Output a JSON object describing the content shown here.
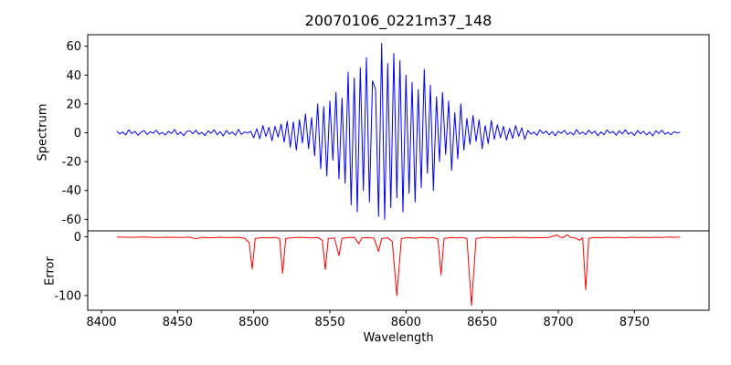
{
  "title": "20070106_0221m37_148",
  "x_axis": {
    "label": "Wavelength",
    "xlim": [
      8391,
      8799
    ],
    "ticks": [
      8400,
      8450,
      8500,
      8550,
      8600,
      8650,
      8700,
      8750
    ]
  },
  "chart_data": [
    {
      "type": "line",
      "title": "20070106_0221m37_148",
      "ylabel": "Spectrum",
      "color": "#0000ff",
      "ylim": [
        -68,
        68
      ],
      "yticks": [
        60,
        40,
        20,
        0,
        -20,
        -40,
        -60
      ],
      "x_start": 8410,
      "x_step": 2,
      "values": [
        1.2,
        -0.8,
        0.5,
        -1.5,
        2.0,
        -0.6,
        1.0,
        -1.8,
        0.4,
        1.5,
        -1.2,
        0.7,
        -0.3,
        1.8,
        -1.0,
        0.2,
        -1.6,
        1.1,
        -0.5,
        2.2,
        -1.3,
        0.6,
        -2.0,
        0.9,
        1.4,
        -0.7,
        1.7,
        -1.1,
        0.3,
        -1.9,
        1.3,
        -0.4,
        2.1,
        -1.4,
        0.8,
        -2.2,
        1.6,
        -0.9,
        0.5,
        -1.7,
        2.3,
        -1.2,
        0.6,
        -0.2,
        1.0,
        -3.5,
        2.8,
        -4.2,
        5.0,
        -2.5,
        3.8,
        -5.5,
        4.5,
        -3.0,
        6.0,
        -6.5,
        8.0,
        -10.0,
        7.5,
        -12.0,
        9.0,
        -7.0,
        13.0,
        -11.0,
        10.5,
        -16.0,
        20.0,
        -25.0,
        18.0,
        -30.0,
        22.0,
        -19.0,
        28.0,
        -32.0,
        24.0,
        -35.0,
        42.0,
        -50.0,
        38.0,
        -55.0,
        45.0,
        -40.0,
        52.0,
        -48.0,
        36.0,
        30.0,
        -58.0,
        62.0,
        -60.0,
        48.0,
        -52.0,
        55.0,
        -45.0,
        50.0,
        -55.0,
        40.0,
        -42.0,
        35.0,
        -48.0,
        30.0,
        -38.0,
        44.0,
        -28.0,
        33.0,
        -40.0,
        25.0,
        -20.0,
        28.0,
        -15.0,
        22.0,
        -26.0,
        14.0,
        -18.0,
        20.0,
        -12.0,
        10.0,
        -8.0,
        12.0,
        -6.0,
        9.0,
        -11.0,
        5.0,
        -7.5,
        8.5,
        -4.5,
        5.5,
        -3.5,
        4.5,
        -5.0,
        3.0,
        -4.0,
        5.0,
        -2.5,
        3.5,
        -4.5,
        1.5,
        -1.0,
        0.6,
        -1.8,
        2.0,
        -0.5,
        1.2,
        -1.5,
        0.8,
        -2.0,
        1.0,
        -0.4,
        1.7,
        -1.2,
        0.3,
        -1.6,
        2.2,
        -0.9,
        0.5,
        -1.3,
        1.8,
        -0.6,
        1.1,
        -2.1,
        0.7,
        -1.4,
        1.9,
        -0.3,
        0.9,
        -1.7,
        1.3,
        -0.8,
        2.0,
        -1.1,
        0.4,
        -1.9,
        1.5,
        -0.7,
        1.0,
        -1.5,
        0.6,
        -2.2,
        1.4,
        -0.5,
        1.8,
        -1.0,
        0.3,
        -1.3,
        0.8,
        -0.2,
        0.5
      ]
    },
    {
      "type": "line",
      "ylabel": "Error",
      "xlabel": "Wavelength",
      "color": "#ff0000",
      "ylim": [
        -125,
        10
      ],
      "yticks": [
        0,
        -100
      ],
      "points": [
        [
          8410,
          -0.5
        ],
        [
          8420,
          -1
        ],
        [
          8428,
          -0.6
        ],
        [
          8436,
          -1.2
        ],
        [
          8444,
          -0.8
        ],
        [
          8452,
          -1.4
        ],
        [
          8458,
          -0.7
        ],
        [
          8462,
          -3.5
        ],
        [
          8466,
          -1
        ],
        [
          8472,
          -1.8
        ],
        [
          8478,
          -0.8
        ],
        [
          8484,
          -1.5
        ],
        [
          8490,
          -1
        ],
        [
          8494,
          -2.5
        ],
        [
          8497,
          -10
        ],
        [
          8499,
          -55
        ],
        [
          8501,
          -3
        ],
        [
          8506,
          -1.2
        ],
        [
          8510,
          -2
        ],
        [
          8514,
          -1
        ],
        [
          8517,
          -3
        ],
        [
          8519,
          -62
        ],
        [
          8521,
          -3
        ],
        [
          8526,
          -1.5
        ],
        [
          8532,
          -1
        ],
        [
          8538,
          -2
        ],
        [
          8542,
          -1.2
        ],
        [
          8545,
          -6
        ],
        [
          8547,
          -56
        ],
        [
          8549,
          -3
        ],
        [
          8553,
          -2
        ],
        [
          8556,
          -32
        ],
        [
          8558,
          -2.5
        ],
        [
          8562,
          -1.5
        ],
        [
          8566,
          -1
        ],
        [
          8569,
          -12
        ],
        [
          8571,
          -2
        ],
        [
          8575,
          -1.5
        ],
        [
          8579,
          -2.5
        ],
        [
          8582,
          -25
        ],
        [
          8584,
          -3
        ],
        [
          8588,
          -2
        ],
        [
          8591,
          -8
        ],
        [
          8594,
          -100
        ],
        [
          8597,
          -3
        ],
        [
          8601,
          -1.5
        ],
        [
          8606,
          -2.5
        ],
        [
          8610,
          -1.2
        ],
        [
          8614,
          -2
        ],
        [
          8618,
          -1.5
        ],
        [
          8621,
          -4
        ],
        [
          8623,
          -65
        ],
        [
          8625,
          -3
        ],
        [
          8629,
          -1.5
        ],
        [
          8633,
          -2
        ],
        [
          8637,
          -1.2
        ],
        [
          8640,
          -3
        ],
        [
          8643,
          -117
        ],
        [
          8646,
          -3
        ],
        [
          8650,
          -1.5
        ],
        [
          8654,
          -1
        ],
        [
          8658,
          -2
        ],
        [
          8662,
          -1.2
        ],
        [
          8666,
          -1.8
        ],
        [
          8670,
          -1
        ],
        [
          8674,
          -1.5
        ],
        [
          8678,
          -1
        ],
        [
          8682,
          -2
        ],
        [
          8686,
          -1.2
        ],
        [
          8690,
          -1.8
        ],
        [
          8694,
          -1
        ],
        [
          8697,
          1.5
        ],
        [
          8699,
          3
        ],
        [
          8701,
          -0.5
        ],
        [
          8703,
          -1.5
        ],
        [
          8706,
          3.5
        ],
        [
          8708,
          -1
        ],
        [
          8711,
          -2
        ],
        [
          8714,
          -6
        ],
        [
          8716,
          -2
        ],
        [
          8718,
          -90
        ],
        [
          8720,
          -2.5
        ],
        [
          8724,
          -1.2
        ],
        [
          8728,
          -1.8
        ],
        [
          8732,
          -1
        ],
        [
          8736,
          -1.5
        ],
        [
          8740,
          -1
        ],
        [
          8744,
          -1.8
        ],
        [
          8748,
          -0.8
        ],
        [
          8752,
          -1.4
        ],
        [
          8756,
          -1
        ],
        [
          8760,
          -1.5
        ],
        [
          8764,
          -0.8
        ],
        [
          8768,
          -1.2
        ],
        [
          8772,
          -0.6
        ],
        [
          8776,
          -1
        ],
        [
          8780,
          -0.5
        ]
      ]
    }
  ]
}
